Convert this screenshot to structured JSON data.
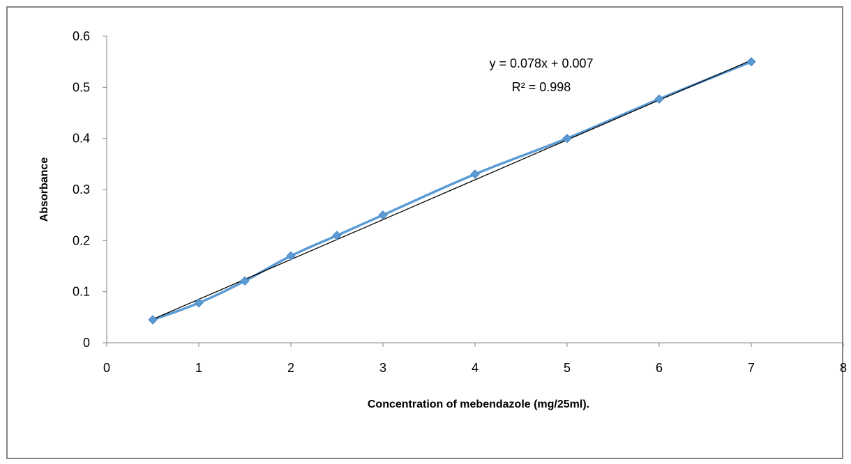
{
  "chart_data": {
    "type": "scatter",
    "title": "",
    "xlabel": "Concentration of mebendazole (mg/25ml).",
    "ylabel": "Absorbance",
    "xlim": [
      0,
      8
    ],
    "ylim": [
      0,
      0.6
    ],
    "x_ticks": [
      0,
      1,
      2,
      3,
      4,
      5,
      6,
      7,
      8
    ],
    "y_ticks": [
      0,
      0.1,
      0.2,
      0.3,
      0.4,
      0.5,
      0.6
    ],
    "x_tick_labels": [
      "0",
      "1",
      "2",
      "3",
      "4",
      "5",
      "6",
      "7",
      "8"
    ],
    "y_tick_labels": [
      "0",
      "0.1",
      "0.2",
      "0.3",
      "0.4",
      "0.5",
      "0.6"
    ],
    "grid": false,
    "legend": "none",
    "series": [
      {
        "x": [
          0.5,
          1,
          1.5,
          2,
          2.5,
          3,
          4,
          5,
          6,
          7
        ],
        "y": [
          0.045,
          0.078,
          0.121,
          0.17,
          0.21,
          0.25,
          0.33,
          0.4,
          0.477,
          0.55
        ],
        "color": "#5B9BD5",
        "marker": "diamond",
        "line": "smooth"
      }
    ],
    "trendline": {
      "type": "linear",
      "slope": 0.078,
      "intercept": 0.007,
      "x_range": [
        0.5,
        7
      ],
      "color": "#000000",
      "equation_label": "y = 0.078x + 0.007",
      "r2_label": "R² = 0.998"
    }
  }
}
